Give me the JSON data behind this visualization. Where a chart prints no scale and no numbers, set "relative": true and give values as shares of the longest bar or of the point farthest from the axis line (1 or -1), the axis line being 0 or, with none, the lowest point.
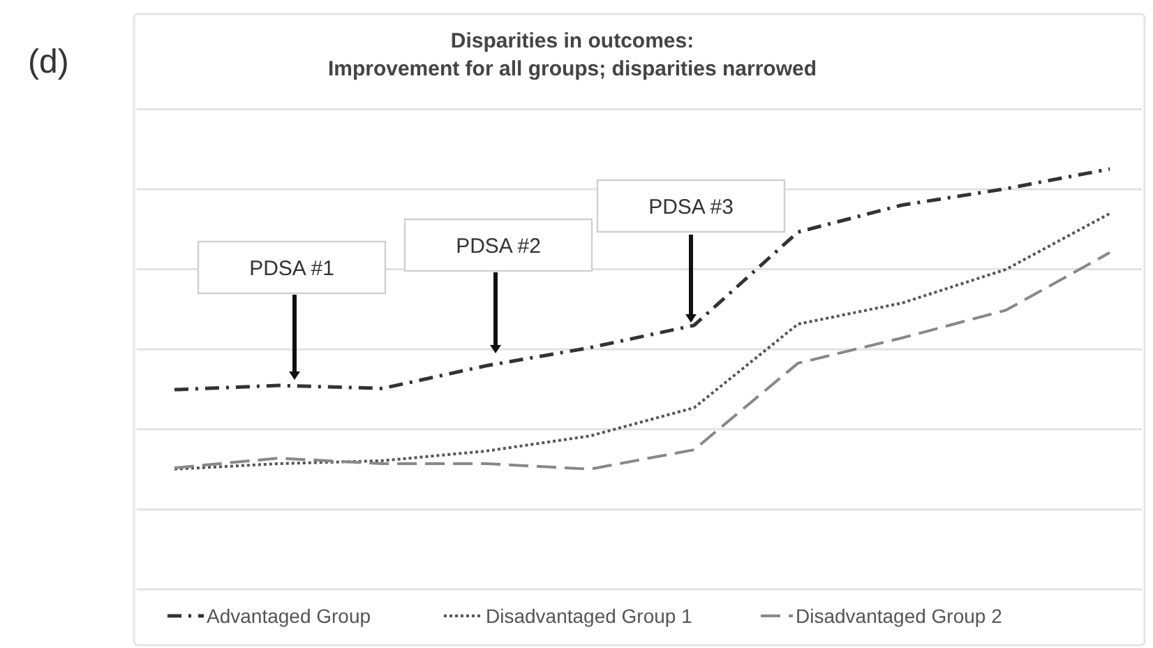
{
  "chart_data": {
    "type": "line",
    "title": "Disparities in outcomes:",
    "subtitle": "Improvement for all groups; disparities narrowed",
    "relative": true,
    "categories": [
      null,
      null,
      null,
      null,
      null,
      null,
      null,
      null,
      null,
      null
    ],
    "series": [
      {
        "name": "Advantaged Group",
        "color": "#333333",
        "line_style": "dashdot",
        "values": [
          0.475,
          0.485,
          0.478,
          0.532,
          0.575,
          0.628,
          0.85,
          0.914,
          0.953,
          1
        ]
      },
      {
        "name": "Disadvantaged Group 1",
        "color": "#555555",
        "line_style": "dotted",
        "values": [
          0.286,
          0.299,
          0.306,
          0.329,
          0.365,
          0.432,
          0.631,
          0.681,
          0.761,
          0.894
        ]
      },
      {
        "name": "Disadvantaged Group 2",
        "color": "#888888",
        "line_style": "dashed",
        "values": [
          0.289,
          0.312,
          0.299,
          0.299,
          0.286,
          0.332,
          0.538,
          0.598,
          0.664,
          0.801
        ]
      }
    ],
    "annotations": [
      "(d)",
      "PDSA #1",
      "PDSA #2",
      "PDSA #3"
    ],
    "grid": "y",
    "legend": "bottom",
    "marker": "none"
  }
}
